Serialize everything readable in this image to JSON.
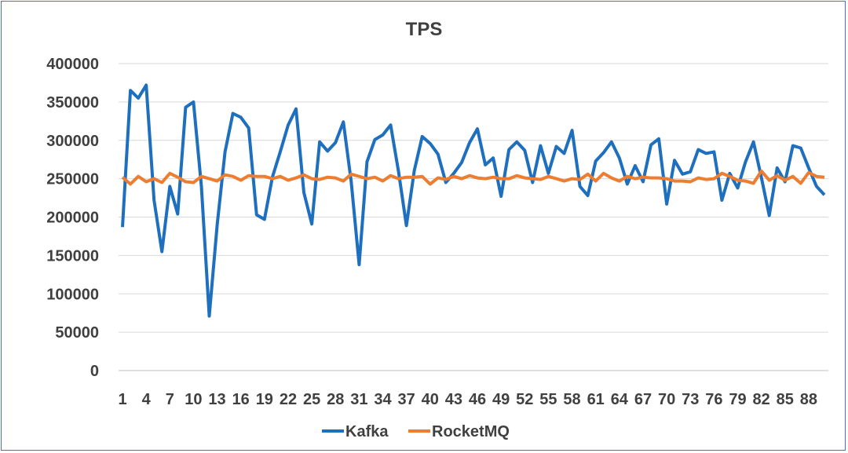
{
  "chart_data": {
    "type": "line",
    "title": "TPS",
    "xlabel": "",
    "ylabel": "",
    "ylim": [
      0,
      400000
    ],
    "yticks": [
      0,
      50000,
      100000,
      150000,
      200000,
      250000,
      300000,
      350000,
      400000
    ],
    "x": [
      1,
      2,
      3,
      4,
      5,
      6,
      7,
      8,
      9,
      10,
      11,
      12,
      13,
      14,
      15,
      16,
      17,
      18,
      19,
      20,
      21,
      22,
      23,
      24,
      25,
      26,
      27,
      28,
      29,
      30,
      31,
      32,
      33,
      34,
      35,
      36,
      37,
      38,
      39,
      40,
      41,
      42,
      43,
      44,
      45,
      46,
      47,
      48,
      49,
      50,
      51,
      52,
      53,
      54,
      55,
      56,
      57,
      58,
      59,
      60,
      61,
      62,
      63,
      64,
      65,
      66,
      67,
      68,
      69,
      70,
      71,
      72,
      73,
      74,
      75,
      76,
      77,
      78,
      79,
      80,
      81,
      82,
      83,
      84,
      85,
      86,
      87,
      88,
      89,
      90
    ],
    "xtick_labels": [
      "1",
      "4",
      "7",
      "10",
      "13",
      "16",
      "19",
      "22",
      "25",
      "28",
      "31",
      "34",
      "37",
      "40",
      "43",
      "46",
      "49",
      "52",
      "55",
      "58",
      "61",
      "64",
      "67",
      "70",
      "73",
      "76",
      "79",
      "82",
      "85",
      "88"
    ],
    "xtick_label_values": [
      1,
      4,
      7,
      10,
      13,
      16,
      19,
      22,
      25,
      28,
      31,
      34,
      37,
      40,
      43,
      46,
      49,
      52,
      55,
      58,
      61,
      64,
      67,
      70,
      73,
      76,
      79,
      82,
      85,
      88
    ],
    "grid": true,
    "legend_position": "bottom",
    "series": [
      {
        "name": "Kafka",
        "color": "#1f6fbf",
        "values": [
          187000,
          365000,
          355000,
          372000,
          222000,
          155000,
          240000,
          204000,
          343000,
          350000,
          240000,
          71000,
          190000,
          285000,
          335000,
          330000,
          316000,
          203000,
          197000,
          252000,
          285000,
          320000,
          341000,
          232000,
          191000,
          298000,
          286000,
          297000,
          324000,
          246000,
          138000,
          272000,
          301000,
          307000,
          320000,
          259000,
          189000,
          261000,
          305000,
          296000,
          282000,
          245000,
          257000,
          271000,
          297000,
          315000,
          268000,
          277000,
          227000,
          288000,
          298000,
          287000,
          245000,
          293000,
          257000,
          292000,
          283000,
          313000,
          240000,
          228000,
          273000,
          284000,
          298000,
          277000,
          243000,
          267000,
          246000,
          294000,
          302000,
          217000,
          274000,
          256000,
          259000,
          288000,
          283000,
          285000,
          222000,
          257000,
          238000,
          272000,
          298000,
          252000,
          202000,
          264000,
          246000,
          293000,
          290000,
          264000,
          240000,
          229000
        ]
      },
      {
        "name": "RocketMQ",
        "color": "#ed7d31",
        "values": [
          252000,
          243000,
          253000,
          246000,
          250000,
          245000,
          257000,
          252000,
          246000,
          245000,
          253000,
          250000,
          247000,
          255000,
          253000,
          248000,
          254000,
          253000,
          253000,
          250000,
          253000,
          248000,
          251000,
          255000,
          250000,
          249000,
          252000,
          251000,
          247000,
          256000,
          253000,
          250000,
          252000,
          247000,
          254000,
          250000,
          252000,
          252000,
          253000,
          243000,
          251000,
          249000,
          253000,
          250000,
          254000,
          251000,
          250000,
          252000,
          250000,
          250000,
          254000,
          251000,
          250000,
          249000,
          253000,
          250000,
          247000,
          250000,
          249000,
          256000,
          247000,
          257000,
          251000,
          247000,
          253000,
          250000,
          252000,
          251000,
          251000,
          250000,
          247000,
          247000,
          246000,
          251000,
          249000,
          250000,
          257000,
          253000,
          248000,
          247000,
          244000,
          260000,
          248000,
          254000,
          248000,
          253000,
          244000,
          258000,
          253000,
          252000
        ]
      }
    ]
  }
}
